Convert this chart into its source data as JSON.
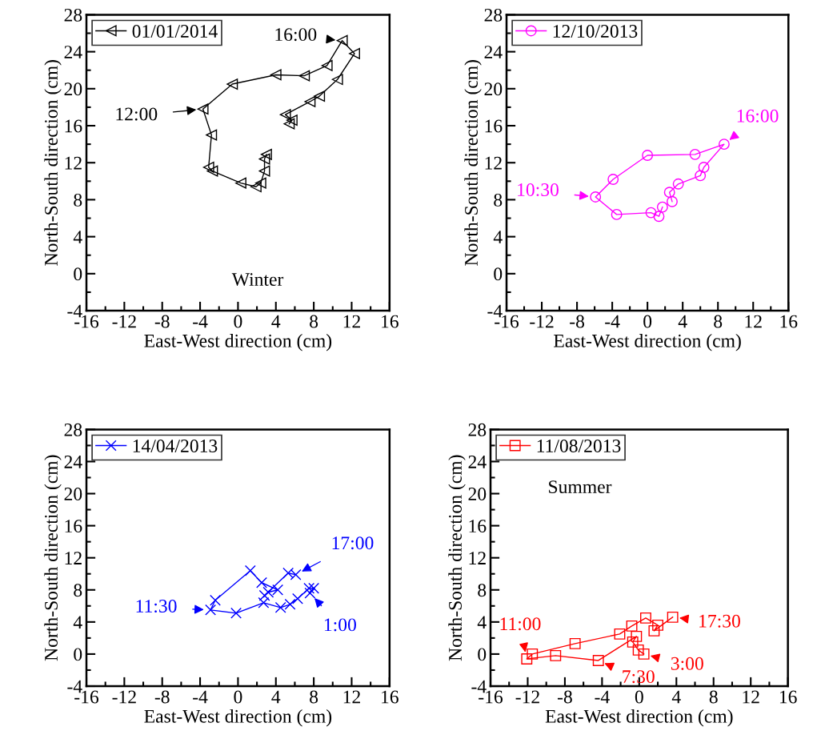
{
  "chart_data": [
    {
      "type": "line",
      "xlabel": "East-West direction (cm)",
      "ylabel": "North-South direction (cm)",
      "xlim": [
        -16,
        16
      ],
      "ylim": [
        -4,
        28
      ],
      "xticks": [
        -16,
        -12,
        -8,
        -4,
        0,
        4,
        8,
        12,
        16
      ],
      "yticks": [
        -4,
        0,
        4,
        8,
        12,
        16,
        20,
        24,
        28
      ],
      "legend": "top left",
      "marker": "triangle",
      "grid": false,
      "series": [
        {
          "name": "01/01/2014",
          "color": "#000000",
          "x": [
            3.0,
            2.8,
            2.8,
            2.4,
            1.9,
            0.3,
            -2.7,
            -3.1,
            -2.8,
            -3.7,
            -0.6,
            4.0,
            7.0,
            9.4,
            11.0,
            12.3,
            10.5,
            8.6,
            7.6,
            5.0,
            5.7,
            5.4
          ],
          "values": [
            12.9,
            12.4,
            11.1,
            9.8,
            9.4,
            9.8,
            11.1,
            11.5,
            15.0,
            17.8,
            20.5,
            21.5,
            21.4,
            22.5,
            25.2,
            23.8,
            21.0,
            19.2,
            18.6,
            17.2,
            16.6,
            16.2
          ]
        }
      ],
      "annotations": [
        {
          "text": "12:00",
          "x": -3.7,
          "y": 17.8
        },
        {
          "text": "16:00",
          "x": 11.0,
          "y": 25.2
        },
        "Winter"
      ]
    },
    {
      "type": "line",
      "xlabel": "East-West direction (cm)",
      "ylabel": "North-South direction (cm)",
      "xlim": [
        -16,
        16
      ],
      "ylim": [
        -4,
        28
      ],
      "xticks": [
        -16,
        -12,
        -8,
        -4,
        0,
        4,
        8,
        12,
        16
      ],
      "yticks": [
        -4,
        0,
        4,
        8,
        12,
        16,
        20,
        24,
        28
      ],
      "legend": "top left",
      "marker": "circle",
      "grid": false,
      "series": [
        {
          "name": "12/10/2013",
          "color": "#ff00ff",
          "x": [
            1.7,
            1.3,
            0.4,
            -3.5,
            -5.9,
            -3.9,
            0.0,
            5.4,
            8.7,
            6.4,
            6.0,
            3.5,
            2.5,
            2.8
          ],
          "values": [
            7.2,
            6.2,
            6.6,
            6.4,
            8.3,
            10.2,
            12.8,
            12.9,
            14.0,
            11.5,
            10.6,
            9.7,
            8.8,
            7.8
          ]
        }
      ],
      "annotations": [
        {
          "text": "10:30",
          "x": -5.9,
          "y": 8.3
        },
        {
          "text": "16:00",
          "x": 8.7,
          "y": 14.0
        }
      ]
    },
    {
      "type": "line",
      "xlabel": "East-West direction (cm)",
      "ylabel": "North-South direction (cm)",
      "xlim": [
        -16,
        16
      ],
      "ylim": [
        -4,
        28
      ],
      "xticks": [
        -16,
        -12,
        -8,
        -4,
        0,
        4,
        8,
        12,
        16
      ],
      "yticks": [
        -4,
        0,
        4,
        8,
        12,
        16,
        20,
        24,
        28
      ],
      "legend": "top left",
      "marker": "cross",
      "grid": false,
      "series": [
        {
          "name": "14/04/2013",
          "color": "#0000ff",
          "x": [
            7.6,
            8.0,
            7.5,
            6.3,
            5.5,
            4.5,
            2.7,
            -0.2,
            -2.9,
            -2.4,
            1.3,
            2.5,
            4.2,
            3.2,
            2.8,
            5.3,
            6.1
          ],
          "values": [
            7.6,
            8.2,
            8.2,
            6.9,
            6.2,
            5.8,
            6.4,
            5.1,
            5.5,
            6.7,
            10.4,
            8.9,
            8.0,
            7.7,
            7.3,
            10.1,
            9.9
          ]
        }
      ],
      "annotations": [
        {
          "text": "11:30",
          "x": -2.9,
          "y": 5.5
        },
        {
          "text": "17:00",
          "x": 6.1,
          "y": 9.9
        },
        {
          "text": "1:00",
          "x": 7.6,
          "y": 7.6
        }
      ]
    },
    {
      "type": "line",
      "xlabel": "East-West direction (cm)",
      "ylabel": "North-South direction (cm)",
      "xlim": [
        -16,
        16
      ],
      "ylim": [
        -4,
        28
      ],
      "xticks": [
        -16,
        -12,
        -8,
        -4,
        0,
        4,
        8,
        12,
        16
      ],
      "yticks": [
        -4,
        0,
        4,
        8,
        12,
        16,
        20,
        24,
        28
      ],
      "legend": "top left",
      "marker": "square",
      "grid": false,
      "series": [
        {
          "name": "11/08/2013",
          "color": "#ff0000",
          "x": [
            0.5,
            -0.1,
            -0.7,
            -0.3,
            -4.4,
            -9.0,
            -12.1,
            -11.5,
            -6.9,
            -2.1,
            -0.8,
            0.7,
            2.0,
            1.6,
            3.6
          ],
          "values": [
            0.0,
            0.5,
            1.5,
            2.2,
            -0.8,
            -0.2,
            -0.6,
            0.0,
            1.3,
            2.5,
            3.5,
            4.5,
            3.6,
            2.9,
            4.6
          ]
        }
      ],
      "annotations": [
        {
          "text": "11:00",
          "x": -12.1,
          "y": -0.6
        },
        {
          "text": "17:30",
          "x": 3.6,
          "y": 4.6
        },
        {
          "text": "3:00",
          "x": 0.5,
          "y": 0.0
        },
        {
          "text": "7:30",
          "x": -4.4,
          "y": -0.8
        },
        "Summer"
      ]
    }
  ]
}
